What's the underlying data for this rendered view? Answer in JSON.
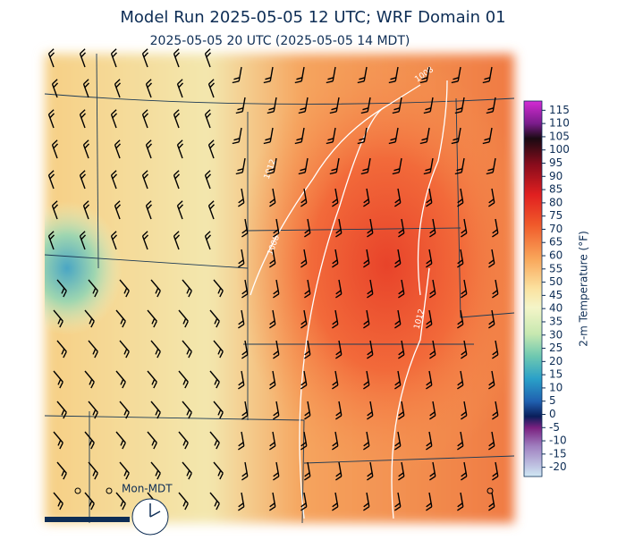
{
  "header": {
    "title": "Model Run 2025-05-05 12 UTC; WRF Domain 01",
    "subtitle": "2025-05-05 20 UTC  (2025-05-05 14 MDT)"
  },
  "map": {
    "isobar_labels": [
      "1008",
      "1012",
      "1008",
      "1012"
    ],
    "timezone_label": "Mon-MDT"
  },
  "colorbar": {
    "label": "2-m Temperature (°F)",
    "lim": [
      -23.5,
      118.5
    ],
    "ticks": [
      115,
      110,
      105,
      100,
      95,
      90,
      85,
      80,
      75,
      70,
      65,
      60,
      55,
      50,
      45,
      40,
      35,
      30,
      25,
      20,
      15,
      10,
      5,
      0,
      -5,
      -10,
      -15,
      -20
    ]
  }
}
